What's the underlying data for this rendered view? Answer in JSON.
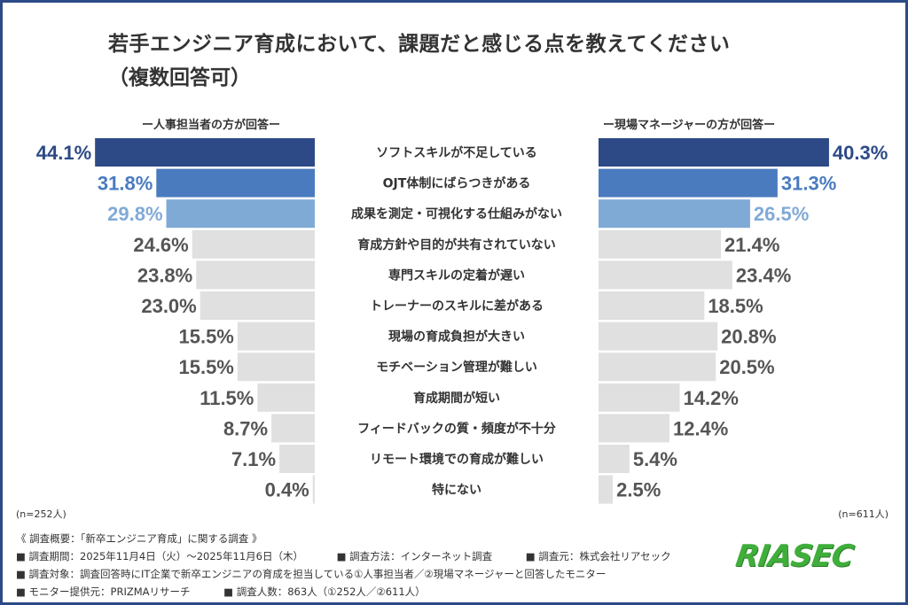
{
  "chart_data": {
    "type": "bar",
    "orientation": "horizontal-butterfly",
    "title": "若手エンジニア育成において、課題だと感じる点を教えてください",
    "subtitle": "（複数回答可）",
    "categories": [
      "ソフトスキルが不足している",
      "OJT体制にばらつきがある",
      "成果を測定・可視化する仕組みがない",
      "育成方針や目的が共有されていない",
      "専門スキルの定着が遅い",
      "トレーナーのスキルに差がある",
      "現場の育成負担が大きい",
      "モチベーション管理が難しい",
      "育成期間が短い",
      "フィードバックの質・頻度が不十分",
      "リモート環境での育成が難しい",
      "特にない"
    ],
    "series": [
      {
        "name": "ー人事担当者の方が回答ー",
        "values": [
          44.1,
          31.8,
          29.8,
          24.6,
          23.8,
          23.0,
          15.5,
          15.5,
          11.5,
          8.7,
          7.1,
          0.4
        ],
        "labels": [
          "44.1%",
          "31.8%",
          "29.8%",
          "24.6%",
          "23.8%",
          "23.0%",
          "15.5%",
          "15.5%",
          "11.5%",
          "8.7%",
          "7.1%",
          "0.4%"
        ],
        "n": "(n=252人)"
      },
      {
        "name": "ー現場マネージャーの方が回答ー",
        "values": [
          40.3,
          31.3,
          26.5,
          21.4,
          23.4,
          18.5,
          20.8,
          20.5,
          14.2,
          12.4,
          5.4,
          2.5
        ],
        "labels": [
          "40.3%",
          "31.3%",
          "26.5%",
          "21.4%",
          "23.4%",
          "18.5%",
          "20.8%",
          "20.5%",
          "14.2%",
          "12.4%",
          "5.4%",
          "2.5%"
        ],
        "n": "(n=611人)"
      }
    ],
    "unit": "%",
    "colors": {
      "rank1": "#2d4a87",
      "rank2": "#4a7bbf",
      "rank3": "#80aad6",
      "other": "#e0e0e0",
      "other_label": "#555555"
    },
    "grid": false
  },
  "footer": {
    "overview": "《 調査概要：「新卒エンジニア育成」に関する調査 》",
    "period": "■ 調査期間：2025年11月4日（火）〜2025年11月6日（木）",
    "method": "■ 調査方法：インターネット調査",
    "source": "■ 調査元：株式会社リアセック",
    "target": "■ 調査対象：調査回答時にIT企業で新卒エンジニアの育成を担当している①人事担当者／②現場マネージャーと回答したモニター",
    "provider": "■ モニター提供元：PRIZMAリサーチ",
    "count": "■ 調査人数：863人（①252人／②611人）"
  },
  "logo": "RIASEC"
}
